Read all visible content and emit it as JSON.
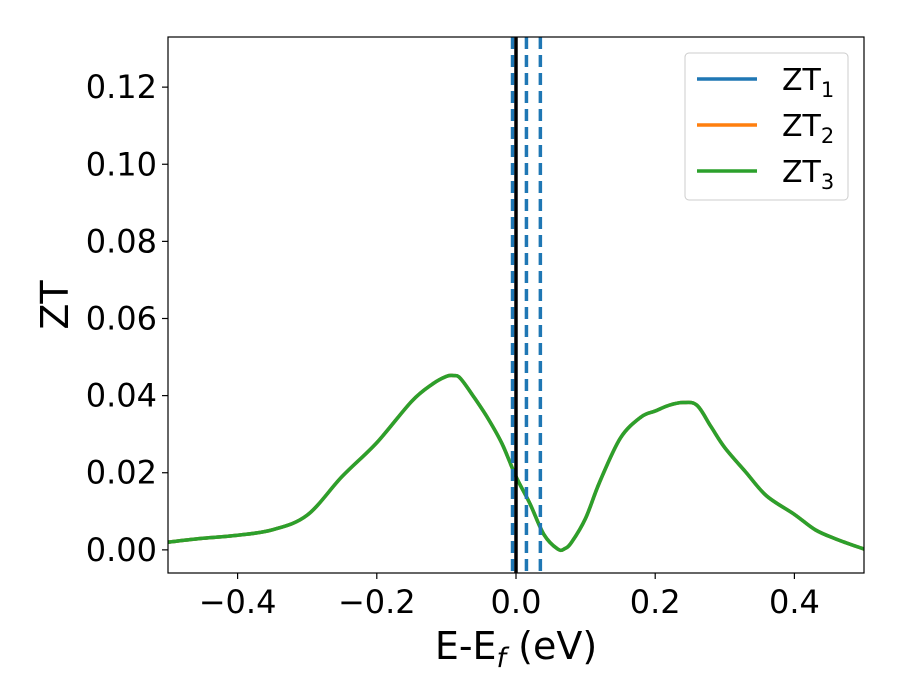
{
  "chart_data": {
    "type": "line",
    "xlabel": "E-E",
    "xlabel_sub": "f",
    "xlabel_unit": " (eV)",
    "ylabel": "ZT",
    "xlim": [
      -0.5,
      0.5
    ],
    "ylim": [
      -0.006,
      0.133
    ],
    "xticks": [
      {
        "v": -0.4,
        "label": "−0.4"
      },
      {
        "v": -0.2,
        "label": "−0.2"
      },
      {
        "v": 0.0,
        "label": "0.0"
      },
      {
        "v": 0.2,
        "label": "0.2"
      },
      {
        "v": 0.4,
        "label": "0.4"
      }
    ],
    "yticks": [
      {
        "v": 0.0,
        "label": "0.00"
      },
      {
        "v": 0.02,
        "label": "0.02"
      },
      {
        "v": 0.04,
        "label": "0.04"
      },
      {
        "v": 0.06,
        "label": "0.06"
      },
      {
        "v": 0.08,
        "label": "0.08"
      },
      {
        "v": 0.1,
        "label": "0.10"
      },
      {
        "v": 0.12,
        "label": "0.12"
      }
    ],
    "grid": false,
    "legend_position": "upper right",
    "legend": [
      {
        "base": "ZT",
        "sub": "1",
        "color": "#1f77b4"
      },
      {
        "base": "ZT",
        "sub": "2",
        "color": "#ff7f0e"
      },
      {
        "base": "ZT",
        "sub": "3",
        "color": "#2ca02c"
      }
    ],
    "vertical_solid": {
      "x": 0.0,
      "color": "#000000"
    },
    "vertical_dashed": {
      "x": [
        -0.005,
        0.015,
        0.035
      ],
      "color": "#1f77b4"
    },
    "series": [
      {
        "name": "ZT1",
        "color": "#1f77b4",
        "x": [
          -0.5,
          -0.45,
          -0.4,
          -0.35,
          -0.3,
          -0.25,
          -0.2,
          -0.15,
          -0.12,
          -0.1,
          -0.09,
          -0.08,
          -0.06,
          -0.04,
          -0.02,
          0.0,
          0.02,
          0.04,
          0.06,
          0.07,
          0.08,
          0.1,
          0.12,
          0.15,
          0.18,
          0.2,
          0.22,
          0.24,
          0.26,
          0.28,
          0.3,
          0.33,
          0.36,
          0.4,
          0.43,
          0.46,
          0.5
        ],
        "y": [
          0.002,
          0.003,
          0.0038,
          0.0052,
          0.009,
          0.019,
          0.0278,
          0.0385,
          0.043,
          0.045,
          0.0452,
          0.0445,
          0.0395,
          0.034,
          0.0275,
          0.019,
          0.012,
          0.004,
          0.0002,
          0.0003,
          0.002,
          0.0082,
          0.0175,
          0.029,
          0.0345,
          0.036,
          0.0375,
          0.0382,
          0.0375,
          0.032,
          0.0265,
          0.0202,
          0.014,
          0.0092,
          0.0052,
          0.0028,
          0.0002
        ]
      },
      {
        "name": "ZT2",
        "color": "#ff7f0e",
        "x": [
          -0.5,
          -0.45,
          -0.4,
          -0.35,
          -0.3,
          -0.25,
          -0.2,
          -0.15,
          -0.12,
          -0.1,
          -0.09,
          -0.08,
          -0.06,
          -0.04,
          -0.02,
          0.0,
          0.02,
          0.04,
          0.06,
          0.07,
          0.08,
          0.1,
          0.12,
          0.15,
          0.18,
          0.2,
          0.22,
          0.24,
          0.26,
          0.28,
          0.3,
          0.33,
          0.36,
          0.4,
          0.43,
          0.46,
          0.5
        ],
        "y": [
          0.002,
          0.003,
          0.0038,
          0.0052,
          0.009,
          0.019,
          0.0278,
          0.0385,
          0.043,
          0.045,
          0.0452,
          0.0445,
          0.0395,
          0.034,
          0.0275,
          0.019,
          0.012,
          0.004,
          0.0002,
          0.0003,
          0.002,
          0.0082,
          0.0175,
          0.029,
          0.0345,
          0.036,
          0.0375,
          0.0382,
          0.0375,
          0.032,
          0.0265,
          0.0202,
          0.014,
          0.0092,
          0.0052,
          0.0028,
          0.0002
        ]
      },
      {
        "name": "ZT3",
        "color": "#2ca02c",
        "x": [
          -0.5,
          -0.45,
          -0.4,
          -0.35,
          -0.3,
          -0.25,
          -0.2,
          -0.15,
          -0.12,
          -0.1,
          -0.09,
          -0.08,
          -0.06,
          -0.04,
          -0.02,
          0.0,
          0.02,
          0.04,
          0.06,
          0.07,
          0.08,
          0.1,
          0.12,
          0.15,
          0.18,
          0.2,
          0.22,
          0.24,
          0.26,
          0.28,
          0.3,
          0.33,
          0.36,
          0.4,
          0.43,
          0.46,
          0.5
        ],
        "y": [
          0.002,
          0.003,
          0.0038,
          0.0052,
          0.009,
          0.019,
          0.0278,
          0.0385,
          0.043,
          0.045,
          0.0452,
          0.0445,
          0.0395,
          0.034,
          0.0275,
          0.019,
          0.012,
          0.004,
          0.0002,
          0.0003,
          0.002,
          0.0082,
          0.0175,
          0.029,
          0.0345,
          0.036,
          0.0375,
          0.0382,
          0.0375,
          0.032,
          0.0265,
          0.0202,
          0.014,
          0.0092,
          0.0052,
          0.0028,
          0.0002
        ]
      }
    ]
  }
}
